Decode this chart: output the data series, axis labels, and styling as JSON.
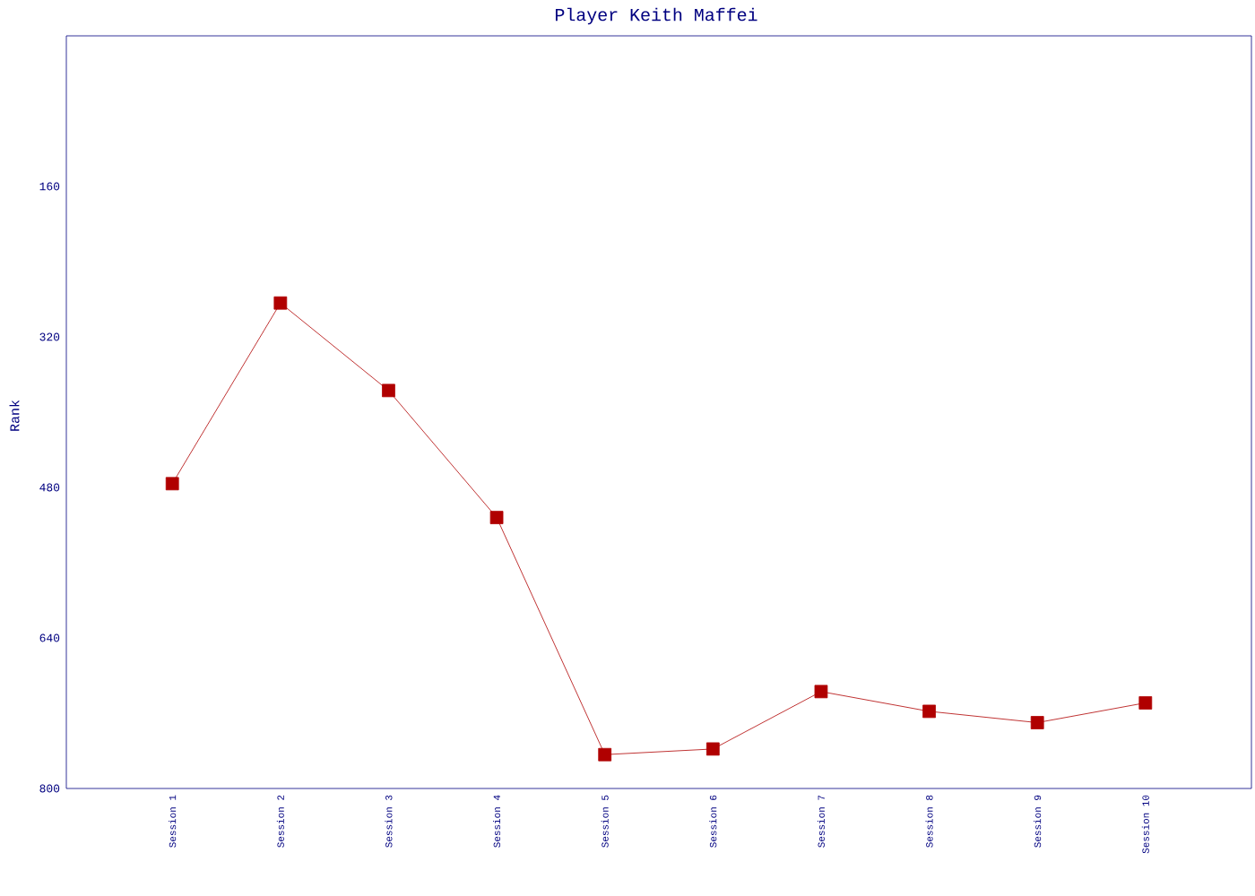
{
  "chart_data": {
    "type": "line",
    "title": "Player Keith Maffei",
    "ylabel": "Rank",
    "categories": [
      "Session 1",
      "Session 2",
      "Session 3",
      "Session 4",
      "Session 5",
      "Session 6",
      "Session 7",
      "Session 8",
      "Session 9",
      "Session 10"
    ],
    "series": [
      {
        "color": "#b00000",
        "values": [
          476,
          284,
          377,
          512,
          764,
          758,
          697,
          718,
          730,
          709
        ]
      }
    ],
    "ylim": [
      800,
      0
    ],
    "yticks": [
      160,
      320,
      480,
      640,
      800
    ],
    "marker": "square",
    "line_style": "solid"
  }
}
